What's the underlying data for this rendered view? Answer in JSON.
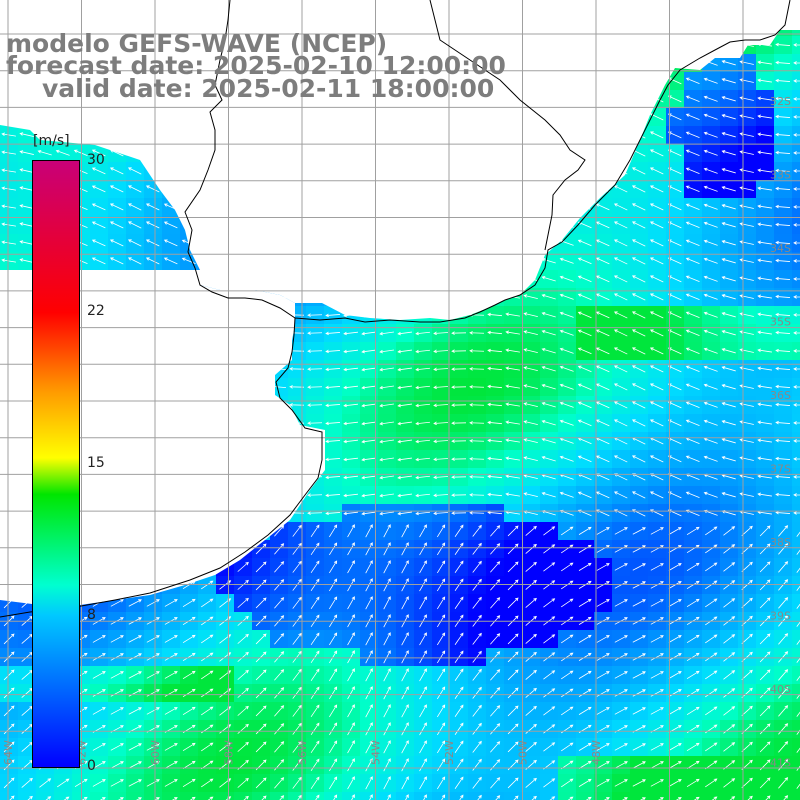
{
  "title": {
    "line1": "modelo GEFS-WAVE (NCEP)",
    "line2": "forecast date: 2025-02-10 12:00:00",
    "line3": "valid date: 2025-02-11 18:00:00"
  },
  "colorbar": {
    "unit": "[m/s]",
    "labels": [
      "30",
      "22",
      "15",
      "8",
      "0"
    ],
    "range": [
      0,
      30
    ]
  },
  "lat_labels": [
    "32S",
    "33S",
    "34S",
    "35S",
    "36S",
    "37S",
    "38S",
    "39S",
    "40S",
    "41S"
  ],
  "lon_labels": [
    "64W",
    "62W",
    "60W",
    "58W",
    "56W",
    "54W",
    "52W",
    "50W",
    "48W"
  ],
  "colors": {
    "land": "#ffffff",
    "grid": "#a0a0a0",
    "coast": "#000000",
    "title": "#7d7d7d",
    "arrow": "#ffffff"
  }
}
